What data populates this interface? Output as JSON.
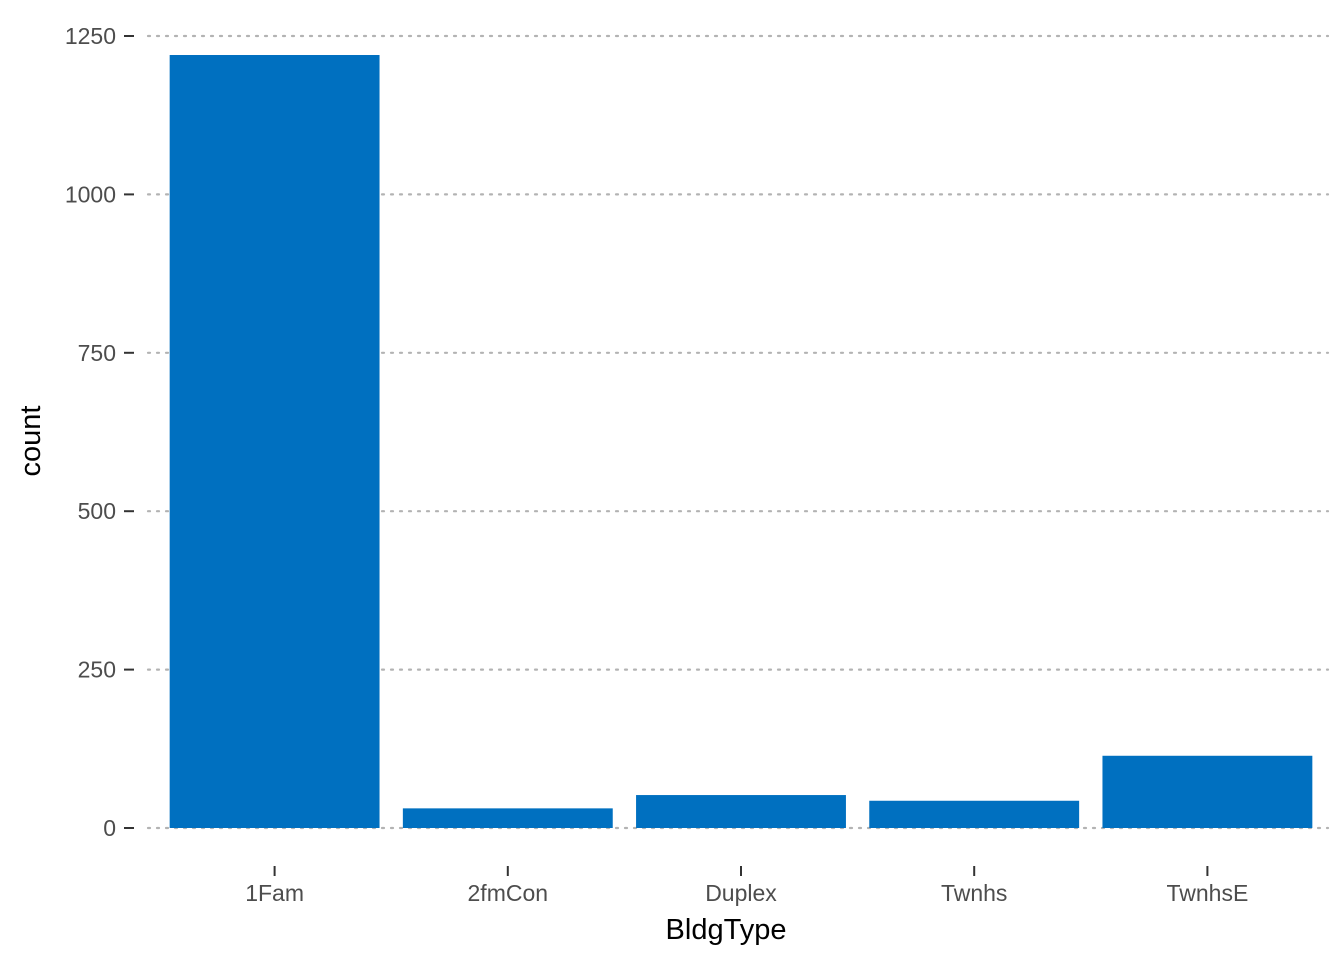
{
  "chart_data": {
    "type": "bar",
    "categories": [
      "1Fam",
      "2fmCon",
      "Duplex",
      "Twnhs",
      "TwnhsE"
    ],
    "values": [
      1220,
      31,
      52,
      43,
      114
    ],
    "xlabel": "BldgType",
    "ylabel": "count",
    "ylim": [
      0,
      1250
    ],
    "yticks": [
      0,
      250,
      500,
      750,
      1000,
      1250
    ],
    "ytick_labels": [
      "0",
      "250",
      "500",
      "750",
      "1000",
      "1250"
    ],
    "grid": "horizontal-dotted",
    "colors": {
      "bar": "#0070C0",
      "grid": "#b3b3b3",
      "tick": "#333333",
      "text": "#4d4d4d",
      "title": "#000000"
    }
  }
}
